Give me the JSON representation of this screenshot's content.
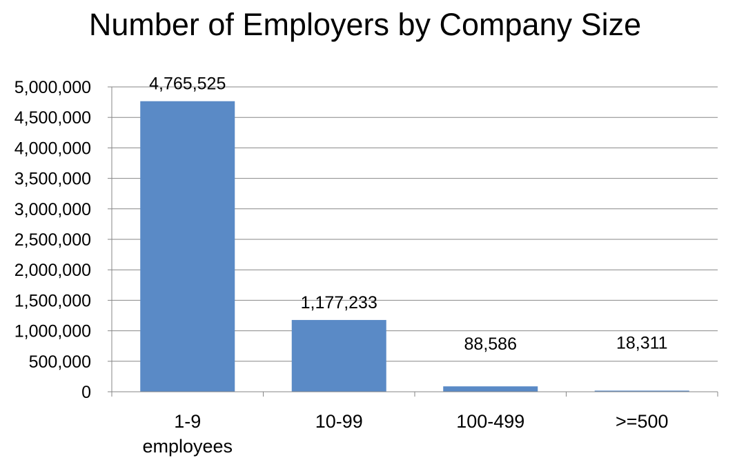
{
  "chart_data": {
    "type": "bar",
    "title": "Number of Employers by Company Size",
    "categories": [
      [
        "1-9",
        "employees"
      ],
      [
        "10-99"
      ],
      [
        "100-499"
      ],
      [
        ">=500"
      ]
    ],
    "values": [
      4765525,
      1177233,
      88586,
      18311
    ],
    "data_labels": [
      "4,765,525",
      "1,177,233",
      "88,586",
      "18,311"
    ],
    "y_ticks": [
      0,
      500000,
      1000000,
      1500000,
      2000000,
      2500000,
      3000000,
      3500000,
      4000000,
      4500000,
      5000000
    ],
    "y_tick_labels": [
      "0",
      "500,000",
      "1,000,000",
      "1,500,000",
      "2,000,000",
      "2,500,000",
      "3,000,000",
      "3,500,000",
      "4,000,000",
      "4,500,000",
      "5,000,000"
    ],
    "ylim": [
      0,
      5000000
    ],
    "xlabel": "",
    "ylabel": "",
    "grid": true,
    "legend": "none",
    "bar_color": "#5a8ac6",
    "grid_color": "#868686"
  }
}
